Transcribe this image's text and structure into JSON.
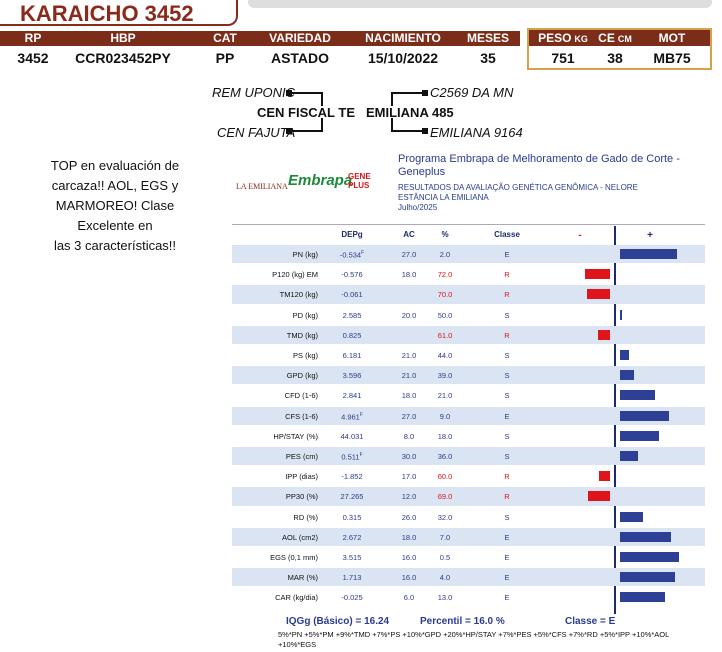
{
  "header": {
    "name": "KARAICHO 3452",
    "columns": [
      "RP",
      "HBP",
      "CAT",
      "VARIEDAD",
      "NACIMIENTO",
      "MESES"
    ],
    "values": [
      "3452",
      "CCR023452PY",
      "PP",
      "ASTADO",
      "15/10/2022",
      "35"
    ],
    "measures": [
      {
        "label": "PESO",
        "unit": "KG",
        "value": "751"
      },
      {
        "label": "CE",
        "unit": "CM",
        "value": "38"
      },
      {
        "label": "MOT",
        "value": "MB75"
      }
    ]
  },
  "pedigree": {
    "sire_sire": "REM UPONIC",
    "sire": "CEN FISCAL TE",
    "sire_dam": "CEN FAJUTA",
    "dam_sire": "C2569 DA MN",
    "dam": "EMILIANA 485",
    "dam_dam": "EMILIANA 9164"
  },
  "comment": [
    "TOP en evaluación de",
    "carcaza!! AOL, EGS y",
    "MARMOREO! Clase",
    "Excelente en",
    "las 3 características!!"
  ],
  "evaluation": {
    "logo_farm": "LA EMILIANA",
    "logo_embrapa": "Embrapa",
    "logo_geneplus": "GENE PLUS",
    "program": "Programa Embrapa de Melhoramento de Gado de Corte - Geneplus",
    "results": "RESULTADOS DA AVALIAÇÃO GENÉTICA GENÔMICA - NELORE",
    "farm": "ESTÂNCIA LA EMILIANA",
    "date": "Julho/2025",
    "columns": [
      "DEPg",
      "AC",
      "%",
      "Classe",
      "-",
      "+"
    ],
    "rows": [
      {
        "trait": "PN (kg)",
        "dep": "-0.534",
        "sup": "F",
        "ac": "27.0",
        "pct": "2.0",
        "classe": "E",
        "bar": 5.7
      },
      {
        "trait": "P120 (kg) EM",
        "dep": "-0.576",
        "ac": "18.0",
        "pct": "72.0",
        "classe": "R",
        "bar": -2.5
      },
      {
        "trait": "TM120 (kg)",
        "dep": "-0.061",
        "ac": null,
        "pct": "70.0",
        "classe": "R",
        "bar": -2.3
      },
      {
        "trait": "PD (kg)",
        "dep": "2.585",
        "ac": "20.0",
        "pct": "50.0",
        "classe": "S",
        "bar": 0.2
      },
      {
        "trait": "TMD (kg)",
        "dep": "0.825",
        "ac": null,
        "pct": "61.0",
        "classe": "R",
        "bar": -1.2
      },
      {
        "trait": "PS (kg)",
        "dep": "6.181",
        "ac": "21.0",
        "pct": "44.0",
        "classe": "S",
        "bar": 0.9
      },
      {
        "trait": "GPD (kg)",
        "dep": "3.596",
        "ac": "21.0",
        "pct": "39.0",
        "classe": "S",
        "bar": 1.4
      },
      {
        "trait": "CFD (1-6)",
        "dep": "2.841",
        "ac": "18.0",
        "pct": "21.0",
        "classe": "S",
        "bar": 3.5
      },
      {
        "trait": "CFS (1-6)",
        "dep": "4.961",
        "sup": "F",
        "ac": "27.0",
        "pct": "9.0",
        "classe": "E",
        "bar": 4.9
      },
      {
        "trait": "HP/STAY (%)",
        "dep": "44.031",
        "ac": "8.0",
        "pct": "18.0",
        "classe": "S",
        "bar": 3.9
      },
      {
        "trait": "PES (cm)",
        "dep": "0.511",
        "sup": "F",
        "ac": "30.0",
        "pct": "36.0",
        "classe": "S",
        "bar": 1.8
      },
      {
        "trait": "IPP (dias)",
        "dep": "-1.852",
        "ac": "17.0",
        "pct": "60.0",
        "classe": "R",
        "bar": -1.1
      },
      {
        "trait": "PP30 (%)",
        "dep": "27.265",
        "ac": "12.0",
        "pct": "69.0",
        "classe": "R",
        "bar": -2.2
      },
      {
        "trait": "RD (%)",
        "dep": "0.315",
        "ac": "26.0",
        "pct": "32.0",
        "classe": "S",
        "bar": 2.3
      },
      {
        "trait": "AOL (cm2)",
        "dep": "2.672",
        "ac": "18.0",
        "pct": "7.0",
        "classe": "E",
        "bar": 5.1
      },
      {
        "trait": "EGS (0,1 mm)",
        "dep": "3.515",
        "ac": "16.0",
        "pct": "0.5",
        "classe": "E",
        "bar": 5.9
      },
      {
        "trait": "MAR (%)",
        "dep": "1.713",
        "ac": "16.0",
        "pct": "4.0",
        "classe": "E",
        "bar": 5.5
      },
      {
        "trait": "CAR (kg/dia)",
        "dep": "-0.025",
        "ac": "6.0",
        "pct": "13.0",
        "classe": "E",
        "bar": 4.5
      }
    ],
    "footer": {
      "iqg": "IQGg (Básico) = 16.24",
      "percentile": "Percentil = 16.0 %",
      "classe": "Classe = E",
      "formula": "5%*PN +5%*PM +9%*TMD +7%*PS +10%*GPD +20%*HP/STAY +7%*PES +5%*CFS +7%*RD +5%*IPP +10%*AOL +10%*EGS"
    }
  }
}
